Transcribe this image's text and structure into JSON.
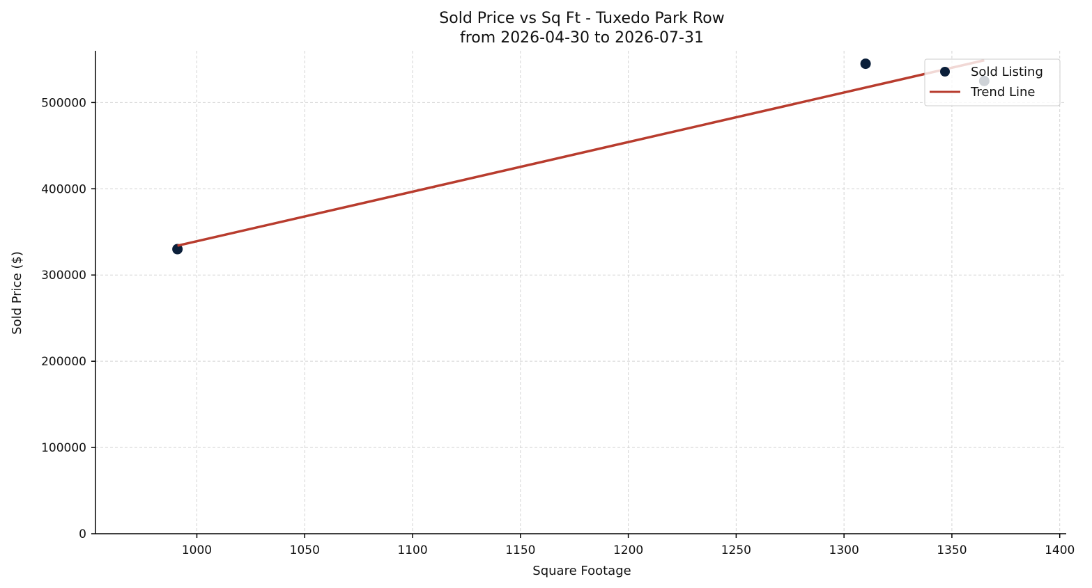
{
  "chart_data": {
    "type": "scatter",
    "title": "Sold Price vs Sq Ft - Tuxedo Park Row",
    "subtitle": "from 2026-04-30 to 2026-07-31",
    "xlabel": "Square Footage",
    "ylabel": "Sold Price ($)",
    "xlim": [
      953,
      1403
    ],
    "ylim": [
      0,
      560000
    ],
    "xticks": [
      1000,
      1050,
      1100,
      1150,
      1200,
      1250,
      1300,
      1350,
      1400
    ],
    "yticks": [
      0,
      100000,
      200000,
      300000,
      400000,
      500000
    ],
    "grid": true,
    "legend_position": "top-right",
    "series": [
      {
        "name": "Sold Listing",
        "kind": "scatter",
        "color": "#0b1f3a",
        "x": [
          991,
          1310,
          1365
        ],
        "y": [
          330000,
          545000,
          525000
        ]
      },
      {
        "name": "Trend Line",
        "kind": "line",
        "color": "#b83c2e",
        "x": [
          991,
          1365
        ],
        "y": [
          334000,
          549000
        ]
      }
    ]
  }
}
